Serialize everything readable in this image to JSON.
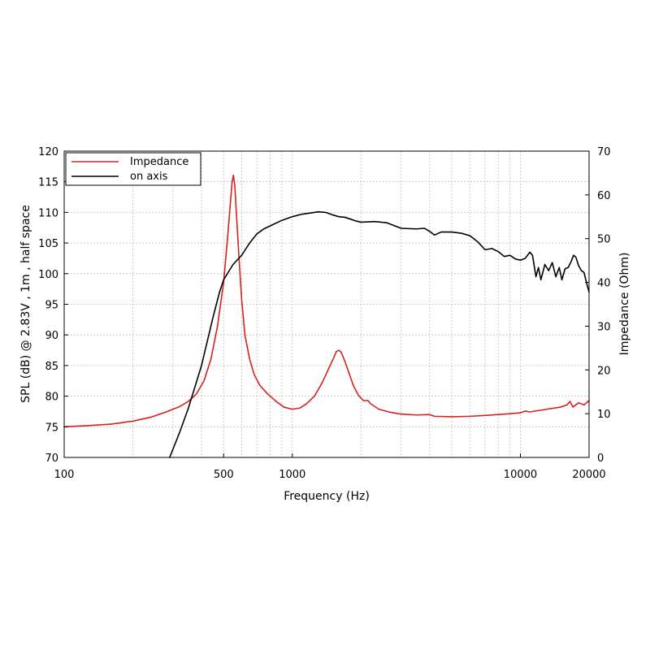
{
  "chart_data": {
    "type": "line",
    "title": "",
    "xlabel": "Frequency (Hz)",
    "ylabel": "SPL (dB) @ 2.83V , 1m , half space",
    "y2label": "Impedance (Ohm)",
    "xscale": "log",
    "xlim": [
      100,
      20000
    ],
    "ylim": [
      70,
      120
    ],
    "y2lim": [
      0,
      70
    ],
    "grid": true,
    "legend_position": "top-left",
    "x_ticks": [
      100,
      500,
      1000,
      10000,
      20000
    ],
    "x_tick_labels": [
      "100",
      "500",
      "1000",
      "10000",
      "20000"
    ],
    "y_ticks": [
      70,
      75,
      80,
      85,
      90,
      95,
      100,
      105,
      110,
      115,
      120
    ],
    "y_tick_labels": [
      "70",
      "75",
      "80",
      "85",
      "90",
      "95",
      "100",
      "105",
      "110",
      "115",
      "120"
    ],
    "y2_ticks": [
      0,
      10,
      20,
      30,
      40,
      50,
      60,
      70
    ],
    "y2_tick_labels": [
      "0",
      "10",
      "20",
      "30",
      "40",
      "50",
      "60",
      "70"
    ],
    "series": [
      {
        "name": "Impedance",
        "color": "#d62020",
        "axis": "right",
        "points": [
          [
            100,
            7.0
          ],
          [
            130,
            7.3
          ],
          [
            160,
            7.6
          ],
          [
            200,
            8.3
          ],
          [
            240,
            9.2
          ],
          [
            280,
            10.4
          ],
          [
            320,
            11.6
          ],
          [
            350,
            12.8
          ],
          [
            380,
            14.5
          ],
          [
            410,
            17.5
          ],
          [
            440,
            22.5
          ],
          [
            470,
            30
          ],
          [
            500,
            40
          ],
          [
            520,
            50
          ],
          [
            535,
            58
          ],
          [
            545,
            63
          ],
          [
            552,
            64.5
          ],
          [
            560,
            62
          ],
          [
            570,
            55
          ],
          [
            585,
            45
          ],
          [
            600,
            36
          ],
          [
            620,
            28
          ],
          [
            650,
            22.5
          ],
          [
            680,
            19
          ],
          [
            720,
            16.5
          ],
          [
            780,
            14.5
          ],
          [
            850,
            12.8
          ],
          [
            920,
            11.5
          ],
          [
            1000,
            11.0
          ],
          [
            1080,
            11.3
          ],
          [
            1150,
            12.2
          ],
          [
            1250,
            14.0
          ],
          [
            1350,
            17.0
          ],
          [
            1450,
            20.5
          ],
          [
            1520,
            22.8
          ],
          [
            1560,
            24.2
          ],
          [
            1600,
            24.5
          ],
          [
            1640,
            24.0
          ],
          [
            1700,
            22.0
          ],
          [
            1780,
            19.0
          ],
          [
            1850,
            16.5
          ],
          [
            1950,
            14.2
          ],
          [
            2050,
            13.0
          ],
          [
            2150,
            13.0
          ],
          [
            2200,
            12.3
          ],
          [
            2400,
            11.0
          ],
          [
            2700,
            10.3
          ],
          [
            3000,
            9.9
          ],
          [
            3500,
            9.7
          ],
          [
            4000,
            9.8
          ],
          [
            4200,
            9.4
          ],
          [
            5000,
            9.3
          ],
          [
            6000,
            9.4
          ],
          [
            7000,
            9.6
          ],
          [
            8000,
            9.8
          ],
          [
            9000,
            10.0
          ],
          [
            10000,
            10.2
          ],
          [
            10500,
            10.6
          ],
          [
            11000,
            10.4
          ],
          [
            13000,
            11.0
          ],
          [
            15000,
            11.5
          ],
          [
            16000,
            12.0
          ],
          [
            16500,
            12.8
          ],
          [
            17000,
            11.5
          ],
          [
            18000,
            12.5
          ],
          [
            19000,
            12.0
          ],
          [
            20000,
            13.0
          ]
        ]
      },
      {
        "name": "on axis",
        "color": "#000000",
        "axis": "left",
        "points": [
          [
            290,
            70
          ],
          [
            320,
            74
          ],
          [
            350,
            78
          ],
          [
            400,
            85
          ],
          [
            450,
            93
          ],
          [
            480,
            97
          ],
          [
            500,
            99
          ],
          [
            550,
            101.5
          ],
          [
            600,
            103
          ],
          [
            650,
            105
          ],
          [
            700,
            106.5
          ],
          [
            750,
            107.3
          ],
          [
            800,
            107.8
          ],
          [
            900,
            108.7
          ],
          [
            1000,
            109.3
          ],
          [
            1100,
            109.7
          ],
          [
            1200,
            109.9
          ],
          [
            1300,
            110.1
          ],
          [
            1400,
            110.0
          ],
          [
            1500,
            109.6
          ],
          [
            1600,
            109.3
          ],
          [
            1700,
            109.2
          ],
          [
            1800,
            108.9
          ],
          [
            1900,
            108.6
          ],
          [
            2000,
            108.4
          ],
          [
            2300,
            108.5
          ],
          [
            2600,
            108.3
          ],
          [
            3000,
            107.4
          ],
          [
            3500,
            107.3
          ],
          [
            3800,
            107.4
          ],
          [
            4000,
            106.9
          ],
          [
            4200,
            106.3
          ],
          [
            4500,
            106.8
          ],
          [
            5000,
            106.8
          ],
          [
            5500,
            106.6
          ],
          [
            6000,
            106.2
          ],
          [
            6500,
            105.2
          ],
          [
            7000,
            103.9
          ],
          [
            7500,
            104.1
          ],
          [
            8000,
            103.6
          ],
          [
            8500,
            102.8
          ],
          [
            9000,
            103.0
          ],
          [
            9500,
            102.4
          ],
          [
            10000,
            102.2
          ],
          [
            10500,
            102.5
          ],
          [
            11000,
            103.5
          ],
          [
            11300,
            103.0
          ],
          [
            11700,
            99.5
          ],
          [
            12000,
            101.0
          ],
          [
            12300,
            99.0
          ],
          [
            12800,
            101.5
          ],
          [
            13300,
            100.5
          ],
          [
            13800,
            101.8
          ],
          [
            14300,
            99.5
          ],
          [
            14800,
            101.0
          ],
          [
            15200,
            99.0
          ],
          [
            15700,
            100.8
          ],
          [
            16200,
            101.0
          ],
          [
            16700,
            102.0
          ],
          [
            17100,
            103.0
          ],
          [
            17500,
            102.7
          ],
          [
            18000,
            101.3
          ],
          [
            18500,
            100.5
          ],
          [
            19000,
            100.2
          ],
          [
            19500,
            98.5
          ],
          [
            20000,
            97.0
          ]
        ]
      }
    ]
  }
}
